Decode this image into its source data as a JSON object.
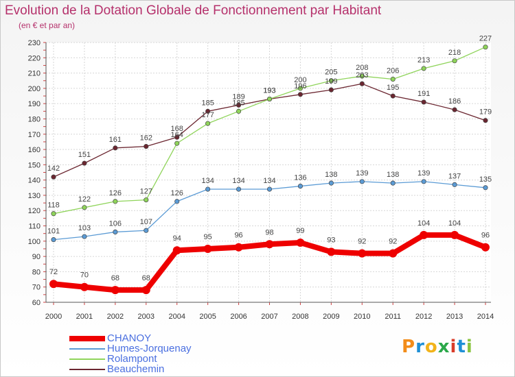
{
  "title": "Evolution de la Dotation Globale de Fonctionnement par Habitant",
  "subtitle": "(en € et par an)",
  "logo": {
    "letters": [
      "P",
      "r",
      "o",
      "x",
      "i",
      "t",
      "i"
    ],
    "colors": [
      "#f28c1a",
      "#1e8fd6",
      "#f2b31a",
      "#2ba84a",
      "#d93c2a",
      "#1e8fd6",
      "#8ac43f"
    ]
  },
  "chart_data": {
    "type": "line",
    "title": "Evolution de la Dotation Globale de Fonctionnement par Habitant",
    "ylabel": "(en € et par an)",
    "xlabel": "",
    "x": [
      "2000",
      "2001",
      "2002",
      "2003",
      "2004",
      "2005",
      "2006",
      "2007",
      "2008",
      "2009",
      "2010",
      "2011",
      "2012",
      "2013",
      "2014"
    ],
    "ylim": [
      60,
      230
    ],
    "yticks": [
      60,
      70,
      80,
      90,
      100,
      110,
      120,
      130,
      140,
      150,
      160,
      170,
      180,
      190,
      200,
      210,
      220,
      230
    ],
    "grid": true,
    "series": [
      {
        "name": "CHANOY",
        "color": "#ee0000",
        "values": [
          72,
          70,
          68,
          68,
          94,
          95,
          96,
          98,
          99,
          93,
          92,
          92,
          104,
          104,
          96
        ]
      },
      {
        "name": "Humes-Jorquenay",
        "color": "#5b9bd5",
        "values": [
          101,
          103,
          106,
          107,
          126,
          134,
          134,
          134,
          136,
          138,
          139,
          138,
          139,
          137,
          135
        ]
      },
      {
        "name": "Rolampont",
        "color": "#8fd45a",
        "values": [
          118,
          122,
          126,
          127,
          164,
          177,
          185,
          193,
          200,
          205,
          208,
          206,
          213,
          218,
          227
        ]
      },
      {
        "name": "Beauchemin",
        "color": "#6b2630",
        "values": [
          142,
          151,
          161,
          162,
          168,
          185,
          189,
          193,
          196,
          199,
          203,
          195,
          191,
          186,
          179
        ]
      }
    ]
  }
}
